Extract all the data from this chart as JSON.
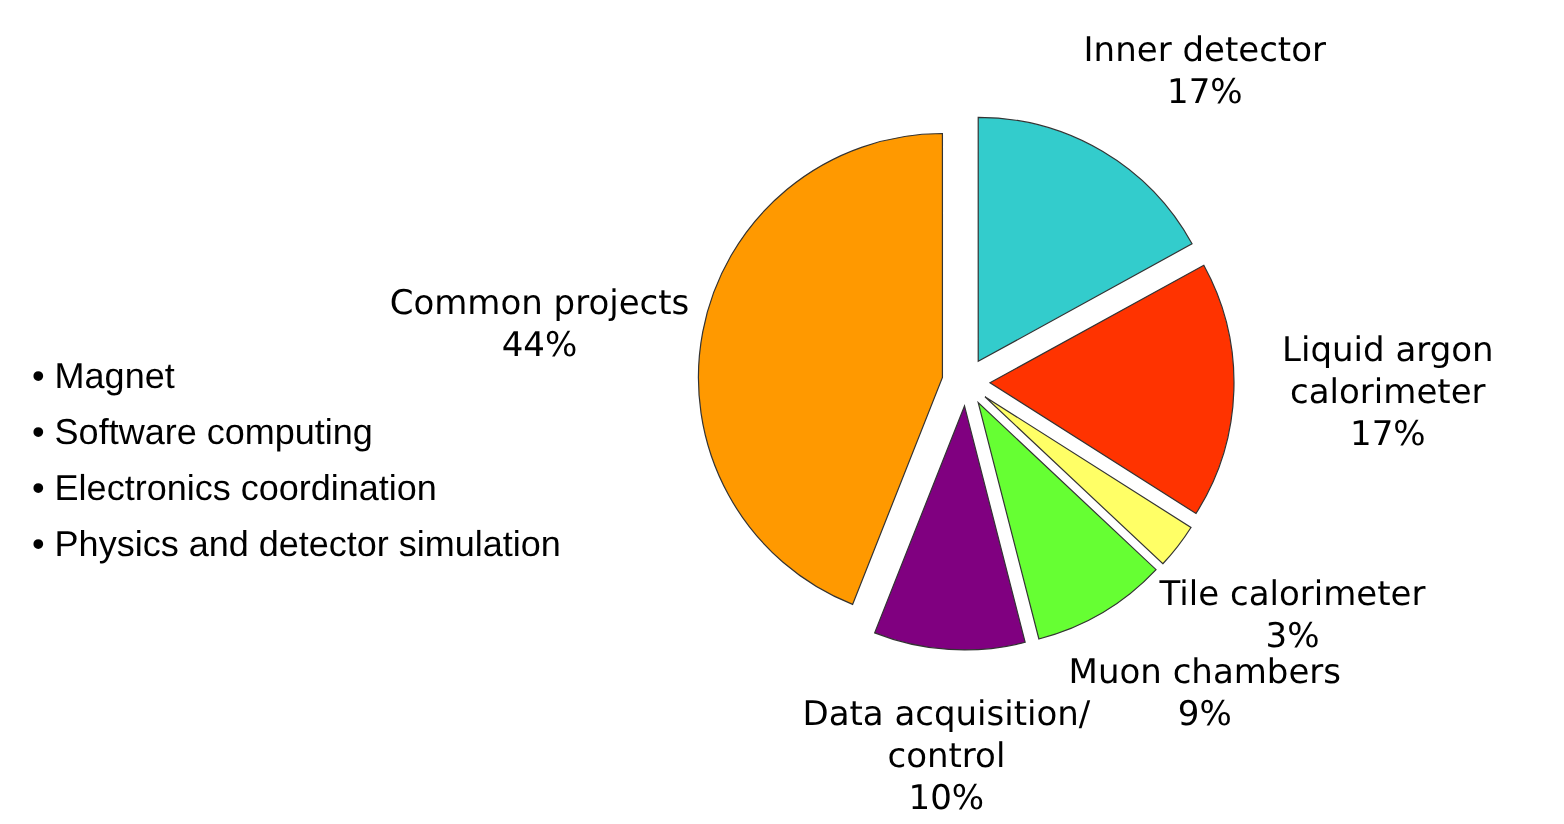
{
  "chart_data": {
    "type": "pie",
    "categories": [
      "Inner detector",
      "Liquid argon calorimeter",
      "Tile calorimeter",
      "Muon chambers",
      "Data acquisition/ control",
      "Common projects"
    ],
    "values": [
      17,
      17,
      3,
      9,
      10,
      44
    ],
    "value_labels": [
      "17%",
      "17%",
      "3%",
      "9%",
      "10%",
      "44%"
    ],
    "colors": [
      "#33cccc",
      "#ff3300",
      "#ffff66",
      "#66ff33",
      "#800080",
      "#ff9900"
    ],
    "annotations": [
      "• Magnet",
      "• Software computing",
      "• Electronics coordination",
      "• Physics and detector simulation"
    ],
    "legend": false
  }
}
